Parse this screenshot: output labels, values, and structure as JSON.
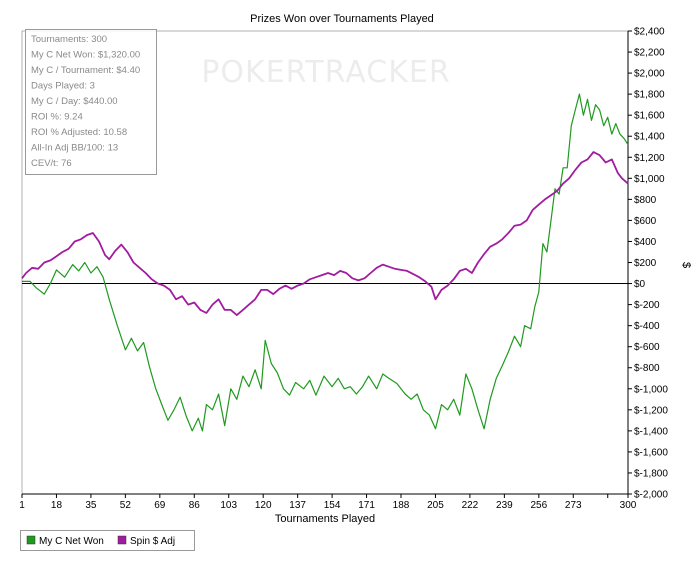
{
  "chart_data": {
    "type": "line",
    "title": "Prizes Won over Tournaments Played",
    "xlabel": "Tournaments Played",
    "ylabel": "$",
    "xlim": [
      1,
      300
    ],
    "ylim": [
      -2000,
      2400
    ],
    "x_ticks": [
      "1",
      "18",
      "35",
      "52",
      "69",
      "86",
      "103",
      "120",
      "137",
      "154",
      "171",
      "188",
      "205",
      "222",
      "239",
      "256",
      "273",
      "",
      "300"
    ],
    "x_tick_values": [
      1,
      18,
      35,
      52,
      69,
      86,
      103,
      120,
      137,
      154,
      171,
      188,
      205,
      222,
      239,
      256,
      273,
      290,
      300
    ],
    "y_ticks": [
      "$-2,000",
      "$-1,800",
      "$-1,600",
      "$-1,400",
      "$-1,200",
      "$-1,000",
      "$-800",
      "$-600",
      "$-400",
      "$-200",
      "$0",
      "$200",
      "$400",
      "$600",
      "$800",
      "$1,000",
      "$1,200",
      "$1,400",
      "$1,600",
      "$1,800",
      "$2,000",
      "$2,200",
      "$2,400"
    ],
    "y_tick_values": [
      -2000,
      -1800,
      -1600,
      -1400,
      -1200,
      -1000,
      -800,
      -600,
      -400,
      -200,
      0,
      200,
      400,
      600,
      800,
      1000,
      1200,
      1400,
      1600,
      1800,
      2000,
      2200,
      2400
    ],
    "grid": false,
    "legend_position": "bottom-left",
    "series": [
      {
        "name": "My C Net Won",
        "color": "#1f9a1f",
        "points": [
          [
            1,
            20
          ],
          [
            5,
            20
          ],
          [
            8,
            -40
          ],
          [
            12,
            -100
          ],
          [
            15,
            0
          ],
          [
            18,
            130
          ],
          [
            22,
            60
          ],
          [
            26,
            180
          ],
          [
            29,
            120
          ],
          [
            32,
            200
          ],
          [
            35,
            100
          ],
          [
            38,
            160
          ],
          [
            41,
            60
          ],
          [
            44,
            -150
          ],
          [
            48,
            -400
          ],
          [
            52,
            -630
          ],
          [
            55,
            -520
          ],
          [
            58,
            -640
          ],
          [
            61,
            -560
          ],
          [
            64,
            -800
          ],
          [
            67,
            -1000
          ],
          [
            70,
            -1150
          ],
          [
            73,
            -1300
          ],
          [
            76,
            -1200
          ],
          [
            79,
            -1080
          ],
          [
            82,
            -1260
          ],
          [
            85,
            -1400
          ],
          [
            88,
            -1280
          ],
          [
            90,
            -1400
          ],
          [
            92,
            -1150
          ],
          [
            95,
            -1200
          ],
          [
            98,
            -1050
          ],
          [
            101,
            -1350
          ],
          [
            104,
            -1000
          ],
          [
            107,
            -1100
          ],
          [
            110,
            -880
          ],
          [
            113,
            -980
          ],
          [
            116,
            -820
          ],
          [
            119,
            -1000
          ],
          [
            121,
            -540
          ],
          [
            124,
            -760
          ],
          [
            127,
            -850
          ],
          [
            130,
            -1000
          ],
          [
            133,
            -1060
          ],
          [
            136,
            -940
          ],
          [
            140,
            -1000
          ],
          [
            143,
            -920
          ],
          [
            146,
            -1060
          ],
          [
            150,
            -880
          ],
          [
            154,
            -980
          ],
          [
            157,
            -900
          ],
          [
            160,
            -1000
          ],
          [
            163,
            -980
          ],
          [
            166,
            -1050
          ],
          [
            169,
            -980
          ],
          [
            172,
            -880
          ],
          [
            176,
            -1000
          ],
          [
            179,
            -860
          ],
          [
            182,
            -900
          ],
          [
            186,
            -950
          ],
          [
            190,
            -1050
          ],
          [
            193,
            -1100
          ],
          [
            196,
            -1050
          ],
          [
            199,
            -1200
          ],
          [
            202,
            -1250
          ],
          [
            205,
            -1380
          ],
          [
            208,
            -1150
          ],
          [
            211,
            -1200
          ],
          [
            214,
            -1100
          ],
          [
            217,
            -1250
          ],
          [
            220,
            -860
          ],
          [
            223,
            -1000
          ],
          [
            226,
            -1200
          ],
          [
            229,
            -1380
          ],
          [
            232,
            -1100
          ],
          [
            235,
            -900
          ],
          [
            238,
            -780
          ],
          [
            241,
            -650
          ],
          [
            244,
            -500
          ],
          [
            247,
            -600
          ],
          [
            249,
            -400
          ],
          [
            252,
            -430
          ],
          [
            254,
            -220
          ],
          [
            256,
            -80
          ],
          [
            258,
            380
          ],
          [
            260,
            300
          ],
          [
            262,
            600
          ],
          [
            264,
            900
          ],
          [
            266,
            850
          ],
          [
            268,
            1100
          ],
          [
            270,
            1100
          ],
          [
            272,
            1500
          ],
          [
            274,
            1650
          ],
          [
            276,
            1800
          ],
          [
            278,
            1600
          ],
          [
            280,
            1750
          ],
          [
            282,
            1550
          ],
          [
            284,
            1700
          ],
          [
            286,
            1650
          ],
          [
            288,
            1500
          ],
          [
            290,
            1580
          ],
          [
            292,
            1420
          ],
          [
            294,
            1520
          ],
          [
            296,
            1420
          ],
          [
            298,
            1380
          ],
          [
            300,
            1320
          ]
        ]
      },
      {
        "name": "Spin $ Adj",
        "color": "#a11ca1",
        "points": [
          [
            1,
            50
          ],
          [
            3,
            100
          ],
          [
            6,
            150
          ],
          [
            9,
            140
          ],
          [
            12,
            200
          ],
          [
            15,
            220
          ],
          [
            18,
            260
          ],
          [
            21,
            300
          ],
          [
            24,
            330
          ],
          [
            27,
            400
          ],
          [
            30,
            420
          ],
          [
            33,
            460
          ],
          [
            36,
            480
          ],
          [
            39,
            400
          ],
          [
            42,
            270
          ],
          [
            44,
            230
          ],
          [
            47,
            310
          ],
          [
            50,
            370
          ],
          [
            53,
            300
          ],
          [
            56,
            200
          ],
          [
            59,
            150
          ],
          [
            62,
            100
          ],
          [
            65,
            40
          ],
          [
            68,
            0
          ],
          [
            71,
            -20
          ],
          [
            74,
            -60
          ],
          [
            77,
            -150
          ],
          [
            80,
            -120
          ],
          [
            83,
            -200
          ],
          [
            86,
            -180
          ],
          [
            89,
            -250
          ],
          [
            92,
            -280
          ],
          [
            95,
            -200
          ],
          [
            98,
            -150
          ],
          [
            101,
            -250
          ],
          [
            104,
            -250
          ],
          [
            107,
            -300
          ],
          [
            110,
            -250
          ],
          [
            113,
            -200
          ],
          [
            116,
            -150
          ],
          [
            119,
            -60
          ],
          [
            122,
            -60
          ],
          [
            125,
            -100
          ],
          [
            128,
            -50
          ],
          [
            131,
            -20
          ],
          [
            134,
            -50
          ],
          [
            137,
            -20
          ],
          [
            140,
            0
          ],
          [
            143,
            40
          ],
          [
            146,
            60
          ],
          [
            149,
            80
          ],
          [
            152,
            100
          ],
          [
            155,
            80
          ],
          [
            158,
            120
          ],
          [
            161,
            100
          ],
          [
            164,
            50
          ],
          [
            167,
            30
          ],
          [
            170,
            50
          ],
          [
            173,
            100
          ],
          [
            176,
            150
          ],
          [
            179,
            180
          ],
          [
            182,
            160
          ],
          [
            185,
            140
          ],
          [
            188,
            130
          ],
          [
            191,
            120
          ],
          [
            194,
            90
          ],
          [
            197,
            60
          ],
          [
            200,
            20
          ],
          [
            203,
            -30
          ],
          [
            205,
            -150
          ],
          [
            208,
            -60
          ],
          [
            211,
            -20
          ],
          [
            214,
            40
          ],
          [
            217,
            120
          ],
          [
            220,
            140
          ],
          [
            223,
            100
          ],
          [
            226,
            200
          ],
          [
            229,
            280
          ],
          [
            232,
            350
          ],
          [
            235,
            380
          ],
          [
            238,
            420
          ],
          [
            241,
            480
          ],
          [
            244,
            550
          ],
          [
            247,
            560
          ],
          [
            250,
            600
          ],
          [
            253,
            700
          ],
          [
            256,
            750
          ],
          [
            259,
            800
          ],
          [
            262,
            840
          ],
          [
            265,
            880
          ],
          [
            268,
            950
          ],
          [
            271,
            1000
          ],
          [
            274,
            1080
          ],
          [
            277,
            1150
          ],
          [
            280,
            1180
          ],
          [
            283,
            1250
          ],
          [
            286,
            1220
          ],
          [
            289,
            1150
          ],
          [
            292,
            1180
          ],
          [
            295,
            1050
          ],
          [
            297,
            1000
          ],
          [
            300,
            950
          ]
        ]
      }
    ]
  },
  "stats_box": {
    "lines": [
      "Tournaments: 300",
      "My C Net Won: $1,320.00",
      "My C / Tournament: $4.40",
      "Days Played: 3",
      "My C / Day: $440.00",
      "ROI %: 9.24",
      "ROI % Adjusted: 10.58",
      "All-In Adj BB/100: 13",
      "CEV/t: 76"
    ]
  },
  "watermark": "POKERTRACKER"
}
